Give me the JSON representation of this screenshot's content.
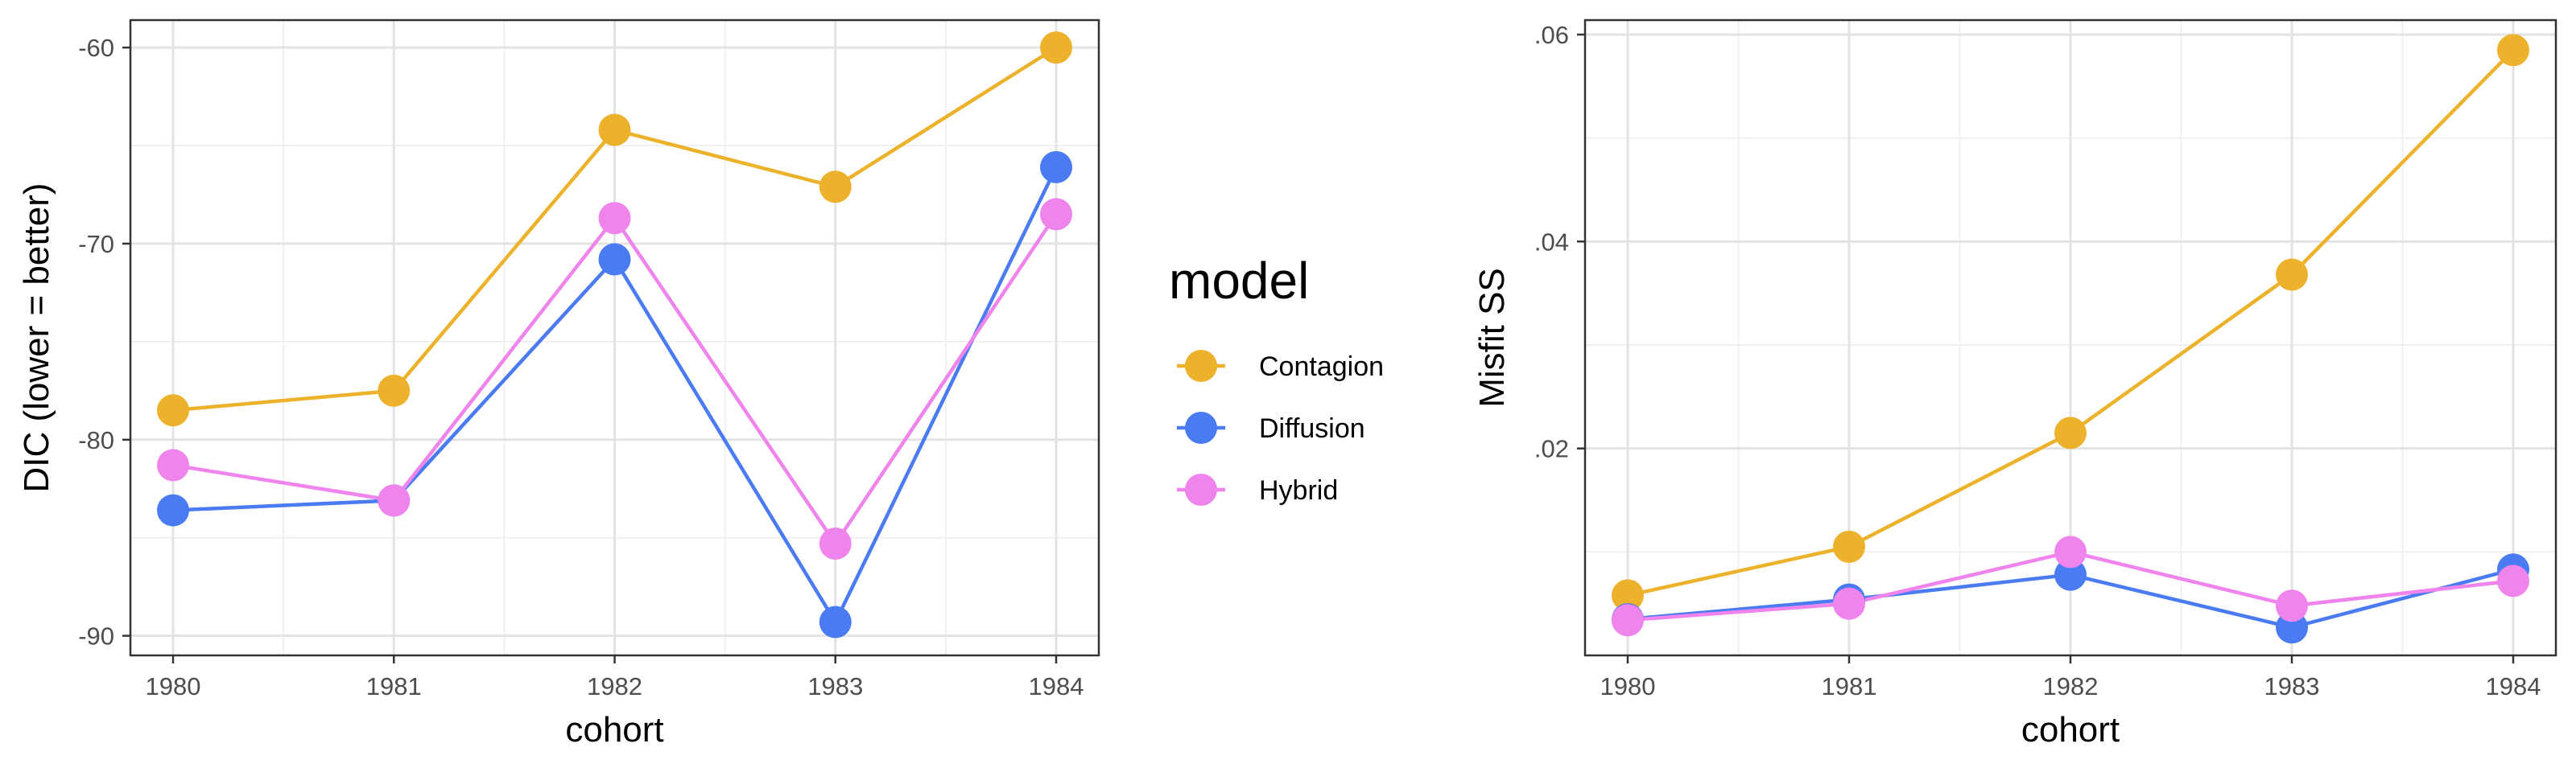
{
  "legend": {
    "title": "model",
    "entries": [
      {
        "name": "Contagion",
        "color": "#EDB22B"
      },
      {
        "name": "Diffusion",
        "color": "#4A7BF3"
      },
      {
        "name": "Hybrid",
        "color": "#EE84EC"
      }
    ]
  },
  "chart_data": [
    {
      "type": "line",
      "xlabel": "cohort",
      "ylabel": "DIC (lower = better)",
      "categories": [
        "1980",
        "1981",
        "1982",
        "1983",
        "1984"
      ],
      "ylim": [
        -91,
        -58.6
      ],
      "yticks": [
        -90,
        -80,
        -70,
        -60
      ],
      "ytick_labels": [
        "-90",
        "-80",
        "-70",
        "-60"
      ],
      "grid": true,
      "series": [
        {
          "name": "Contagion",
          "color": "#EDB22B",
          "values": [
            -78.5,
            -77.5,
            -64.2,
            -67.1,
            -60.0
          ]
        },
        {
          "name": "Diffusion",
          "color": "#4A7BF3",
          "values": [
            -83.6,
            -83.1,
            -70.8,
            -89.3,
            -66.1
          ]
        },
        {
          "name": "Hybrid",
          "color": "#EE84EC",
          "values": [
            -81.3,
            -83.1,
            -68.7,
            -85.3,
            -68.5
          ]
        }
      ]
    },
    {
      "type": "line",
      "xlabel": "cohort",
      "ylabel": "Misfit SS",
      "categories": [
        "1980",
        "1981",
        "1982",
        "1983",
        "1984"
      ],
      "ylim": [
        0.0,
        0.0614
      ],
      "yticks": [
        0.02,
        0.04,
        0.06
      ],
      "ytick_labels": [
        ".02",
        ".04",
        ".06"
      ],
      "grid": true,
      "series": [
        {
          "name": "Contagion",
          "color": "#EDB22B",
          "values": [
            0.0058,
            0.0105,
            0.0215,
            0.0368,
            0.0585
          ]
        },
        {
          "name": "Diffusion",
          "color": "#4A7BF3",
          "values": [
            0.0035,
            0.0054,
            0.0078,
            0.0027,
            0.0083
          ]
        },
        {
          "name": "Hybrid",
          "color": "#EE84EC",
          "values": [
            0.0034,
            0.005,
            0.01,
            0.0048,
            0.0072
          ]
        }
      ]
    }
  ]
}
